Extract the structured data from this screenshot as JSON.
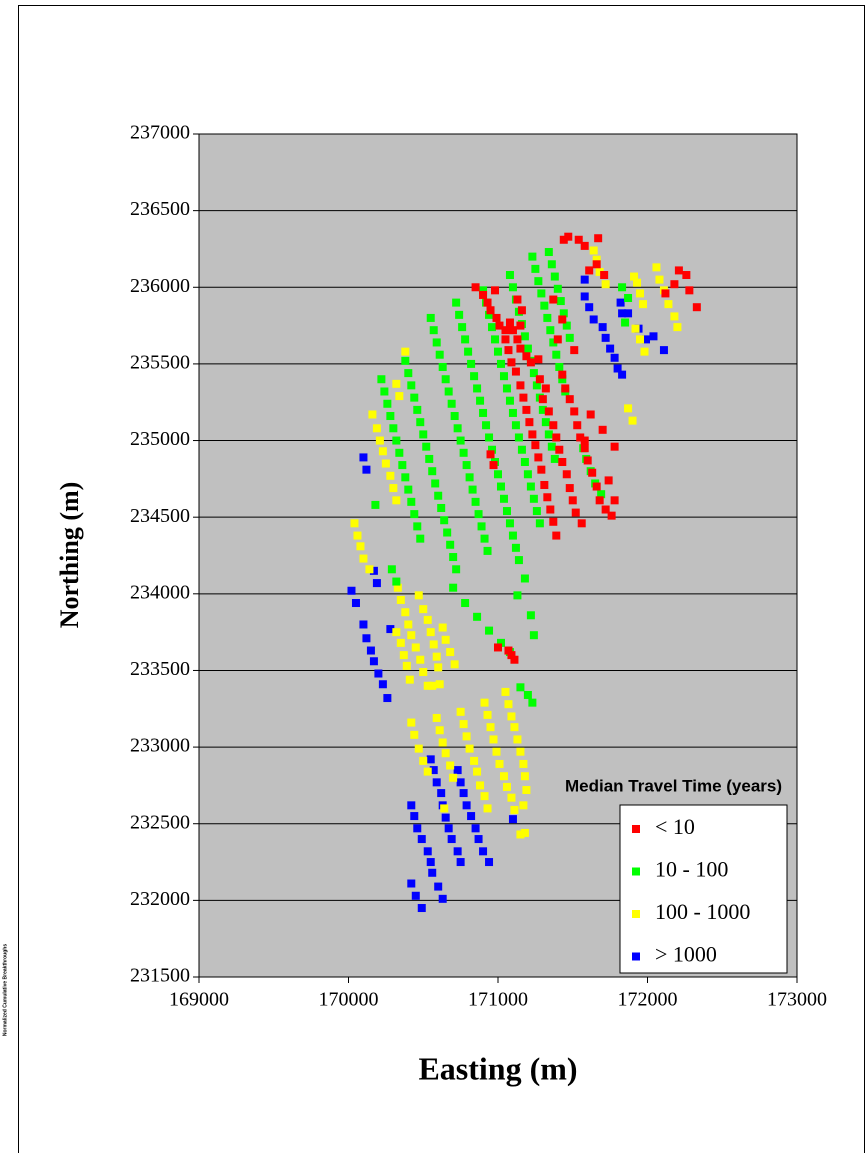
{
  "chart_data": {
    "type": "scatter",
    "x_label": "Easting (m)",
    "y_label": "Northing (m)",
    "side_note": "Normalized Cumulative Breakthroughs",
    "xlim": [
      169000,
      173000
    ],
    "ylim": [
      231500,
      237000
    ],
    "xticks": [
      169000,
      170000,
      171000,
      172000,
      173000
    ],
    "yticks": [
      231500,
      232000,
      232500,
      233000,
      233500,
      234000,
      234500,
      235000,
      235500,
      236000,
      236500,
      237000
    ],
    "grid": true,
    "plot_background": "#c0c0c0",
    "legend_title": "Median Travel Time (years)",
    "legend_position": "lower right",
    "series": [
      {
        "name": "< 10",
        "color": "#ff0000",
        "x": [
          170850,
          170900,
          170930,
          170950,
          170990,
          171010,
          171050,
          171080,
          171100,
          171130,
          171150,
          171190,
          171220,
          171270,
          171130,
          171160,
          171150,
          170980,
          171050,
          171070,
          171090,
          171120,
          171150,
          171170,
          171190,
          171210,
          171230,
          171250,
          171270,
          171290,
          171310,
          171330,
          171350,
          171370,
          171390,
          171300,
          171320,
          171340,
          171370,
          171390,
          171410,
          171430,
          171460,
          171480,
          171500,
          171520,
          171560,
          171430,
          171450,
          171480,
          171510,
          171530,
          171550,
          171580,
          171600,
          171630,
          171660,
          171680,
          171720,
          171760,
          171780,
          171740,
          171440,
          171470,
          171540,
          171580,
          171670,
          171610,
          171710,
          171660,
          170950,
          170970,
          171000,
          171070,
          171090,
          171110,
          172210,
          172260,
          172280,
          172330,
          172180,
          172120,
          171780,
          171700,
          171370,
          171430,
          171400,
          171620,
          171580,
          171510,
          171280
        ],
        "values": [
          236000,
          235950,
          235900,
          235850,
          235800,
          235750,
          235720,
          235770,
          235720,
          235660,
          235600,
          235550,
          235510,
          235530,
          235920,
          235850,
          235750,
          235980,
          235660,
          235590,
          235510,
          235450,
          235360,
          235280,
          235200,
          235120,
          235040,
          234970,
          234890,
          234810,
          234710,
          234630,
          234550,
          234470,
          234380,
          235270,
          235340,
          235190,
          235100,
          235020,
          234940,
          234860,
          234780,
          234690,
          234610,
          234530,
          234460,
          235430,
          235340,
          235270,
          235190,
          235100,
          235020,
          234950,
          234870,
          234790,
          234700,
          234610,
          234550,
          234510,
          234610,
          234740,
          236310,
          236330,
          236310,
          236270,
          236320,
          236110,
          236080,
          236150,
          234910,
          234840,
          233650,
          233630,
          233600,
          233570,
          236110,
          236080,
          235980,
          235870,
          236020,
          235960,
          234960,
          235070,
          235920,
          235790,
          235660,
          235170,
          235000,
          235590,
          235400
        ]
      },
      {
        "name": "10 - 100",
        "color": "#00ff00",
        "x": [
          170220,
          170240,
          170260,
          170280,
          170300,
          170320,
          170340,
          170360,
          170380,
          170400,
          170420,
          170440,
          170460,
          170480,
          170380,
          170400,
          170420,
          170440,
          170460,
          170480,
          170500,
          170520,
          170540,
          170560,
          170580,
          170600,
          170620,
          170640,
          170660,
          170680,
          170700,
          170720,
          170550,
          170570,
          170590,
          170610,
          170630,
          170650,
          170670,
          170690,
          170710,
          170730,
          170750,
          170770,
          170790,
          170810,
          170830,
          170850,
          170870,
          170890,
          170910,
          170930,
          170720,
          170740,
          170760,
          170780,
          170800,
          170820,
          170840,
          170860,
          170880,
          170900,
          170920,
          170940,
          170960,
          170980,
          171000,
          171020,
          171040,
          171060,
          171080,
          171100,
          171120,
          171140,
          170900,
          170920,
          170940,
          170960,
          170980,
          171000,
          171020,
          171040,
          171060,
          171080,
          171100,
          171120,
          171140,
          171160,
          171180,
          171200,
          171220,
          171240,
          171260,
          171280,
          171080,
          171100,
          171120,
          171140,
          171160,
          171180,
          171200,
          171220,
          171240,
          171260,
          171280,
          171300,
          171320,
          171340,
          171360,
          171380,
          171230,
          171250,
          171270,
          171290,
          171310,
          171330,
          171350,
          171370,
          171390,
          171410,
          171430,
          171450,
          171340,
          171360,
          171380,
          171400,
          171420,
          171440,
          171460,
          171480,
          171570,
          171590,
          171620,
          171650,
          171690,
          171830,
          171870,
          171850,
          170700,
          170780,
          170860,
          170940,
          171020,
          171080,
          171240,
          171150,
          171200,
          171230,
          171130,
          171180,
          171220,
          170290,
          170320,
          170180
        ],
        "values": [
          235400,
          235320,
          235240,
          235160,
          235080,
          235000,
          234920,
          234840,
          234760,
          234680,
          234600,
          234520,
          234440,
          234360,
          235520,
          235440,
          235360,
          235280,
          235200,
          235120,
          235040,
          234960,
          234880,
          234800,
          234720,
          234640,
          234560,
          234480,
          234400,
          234320,
          234240,
          234160,
          235800,
          235720,
          235640,
          235560,
          235480,
          235400,
          235320,
          235240,
          235160,
          235080,
          235000,
          234920,
          234840,
          234760,
          234680,
          234600,
          234520,
          234440,
          234360,
          234280,
          235900,
          235820,
          235740,
          235660,
          235580,
          235500,
          235420,
          235340,
          235260,
          235180,
          235100,
          235020,
          234940,
          234860,
          234780,
          234700,
          234620,
          234540,
          234460,
          234380,
          234300,
          234220,
          235980,
          235900,
          235820,
          235740,
          235660,
          235580,
          235500,
          235420,
          235340,
          235260,
          235180,
          235100,
          235020,
          234940,
          234860,
          234780,
          234700,
          234620,
          234540,
          234460,
          236080,
          236000,
          235920,
          235840,
          235760,
          235680,
          235600,
          235520,
          235440,
          235360,
          235280,
          235200,
          235120,
          235040,
          234960,
          234880,
          236200,
          236120,
          236040,
          235960,
          235880,
          235800,
          235720,
          235640,
          235560,
          235480,
          235400,
          235320,
          236230,
          236150,
          236070,
          235990,
          235910,
          235830,
          235750,
          235670,
          234950,
          234880,
          234800,
          234720,
          234650,
          236000,
          235930,
          235770,
          234040,
          233940,
          233850,
          233760,
          233680,
          233620,
          233730,
          233390,
          233340,
          233290,
          233990,
          234100,
          233860,
          234160,
          234080,
          234580
        ]
      },
      {
        "name": "100 - 1000",
        "color": "#ffff00",
        "x": [
          170420,
          170440,
          170470,
          170500,
          170530,
          170590,
          170610,
          170630,
          170650,
          170680,
          170700,
          170750,
          170770,
          170790,
          170810,
          170840,
          170860,
          170880,
          170910,
          170930,
          170910,
          170930,
          170950,
          170970,
          170990,
          171010,
          171040,
          171060,
          171090,
          171110,
          171150,
          171050,
          171070,
          171090,
          171110,
          171130,
          171150,
          171170,
          171180,
          171190,
          171170,
          171180,
          170640,
          170040,
          170060,
          170080,
          170100,
          170140,
          170160,
          170190,
          170210,
          170230,
          170250,
          170280,
          170300,
          170320,
          170330,
          170350,
          170380,
          170400,
          170420,
          170450,
          170480,
          170500,
          170530,
          170470,
          170500,
          170530,
          170550,
          170570,
          170590,
          170600,
          170610,
          170560,
          170320,
          170350,
          170370,
          170390,
          170410,
          170630,
          170650,
          170680,
          170710,
          170380,
          170320,
          170340,
          171640,
          171660,
          171680,
          171720,
          171910,
          171930,
          171950,
          171970,
          171920,
          171950,
          171980,
          172060,
          172080,
          172110,
          172140,
          172180,
          172200,
          171870,
          171900
        ],
        "values": [
          233160,
          233080,
          232990,
          232910,
          232840,
          233190,
          233110,
          233030,
          232960,
          232880,
          232800,
          233230,
          233150,
          233070,
          232990,
          232910,
          232840,
          232750,
          232680,
          232600,
          233290,
          233210,
          233130,
          233050,
          232970,
          232890,
          232810,
          232740,
          232670,
          232590,
          232430,
          233360,
          233280,
          233200,
          233130,
          233050,
          232970,
          232890,
          232810,
          232720,
          232620,
          232440,
          232600,
          234460,
          234380,
          234310,
          234230,
          234160,
          235170,
          235080,
          235000,
          234930,
          234850,
          234770,
          234690,
          234610,
          234040,
          233960,
          233880,
          233800,
          233730,
          233650,
          233570,
          233490,
          233400,
          233990,
          233900,
          233830,
          233750,
          233670,
          233590,
          233520,
          233410,
          233400,
          233750,
          233680,
          233600,
          233530,
          233440,
          233780,
          233700,
          233620,
          233540,
          235580,
          235370,
          235290,
          236240,
          236180,
          236100,
          236020,
          236070,
          236030,
          235960,
          235890,
          235730,
          235660,
          235580,
          236130,
          236050,
          235980,
          235890,
          235810,
          235740,
          235210,
          235130
        ]
      },
      {
        "name": "> 1000",
        "color": "#0000ff",
        "x": [
          170420,
          170440,
          170460,
          170490,
          170530,
          170550,
          170560,
          170420,
          170450,
          170490,
          170550,
          170570,
          170590,
          170620,
          170630,
          170650,
          170670,
          170690,
          170730,
          170750,
          170600,
          170630,
          170730,
          170750,
          170770,
          170790,
          170820,
          170850,
          170870,
          170900,
          170940,
          171100,
          170020,
          170050,
          170100,
          170120,
          170150,
          170170,
          170200,
          170230,
          170260,
          170170,
          170190,
          170280,
          170100,
          170120,
          171580,
          171580,
          171610,
          171640,
          171700,
          171720,
          171750,
          171780,
          171800,
          171830,
          171820,
          171830,
          171870,
          171940,
          171990,
          172040,
          172110
        ],
        "values": [
          232620,
          232550,
          232470,
          232400,
          232320,
          232250,
          232180,
          232110,
          232030,
          231950,
          232920,
          232850,
          232770,
          232700,
          232620,
          232540,
          232470,
          232400,
          232320,
          232250,
          232090,
          232010,
          232850,
          232770,
          232700,
          232620,
          232550,
          232470,
          232400,
          232320,
          232250,
          232530,
          234020,
          233940,
          233800,
          233710,
          233630,
          233560,
          233480,
          233410,
          233320,
          234150,
          234070,
          233770,
          234890,
          234810,
          236050,
          235940,
          235870,
          235790,
          235740,
          235670,
          235600,
          235540,
          235470,
          235430,
          235900,
          235830,
          235830,
          235730,
          235660,
          235680,
          235590
        ]
      }
    ]
  }
}
